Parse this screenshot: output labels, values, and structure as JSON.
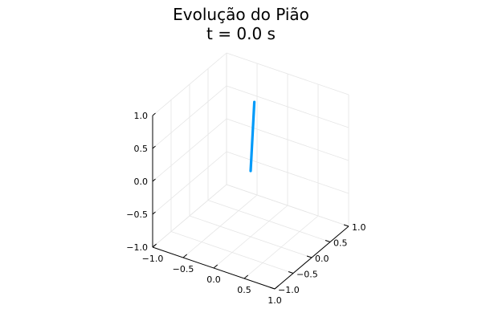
{
  "chart_data": {
    "type": "line",
    "title": "Evolução do Pião",
    "subtitle": "t = 0.0 s",
    "xlim": [
      -1.0,
      1.0
    ],
    "ylim": [
      -1.0,
      1.0
    ],
    "zlim": [
      -1.0,
      1.0
    ],
    "x_ticks": [
      "−1.0",
      "−0.5",
      "0.0",
      "0.5",
      "1.0"
    ],
    "y_ticks": [
      "−1.0",
      "−0.5",
      "0.0",
      "0.5",
      "1.0"
    ],
    "z_ticks": [
      "−1.0",
      "−0.5",
      "0.0",
      "0.5",
      "1.0"
    ],
    "grid": true,
    "series": [
      {
        "color": "#009af9",
        "points": [
          {
            "x": 0.0,
            "y": 0.0,
            "z": 0.0
          },
          {
            "x": 0.0,
            "y": 0.1,
            "z": 1.0
          }
        ]
      }
    ]
  }
}
